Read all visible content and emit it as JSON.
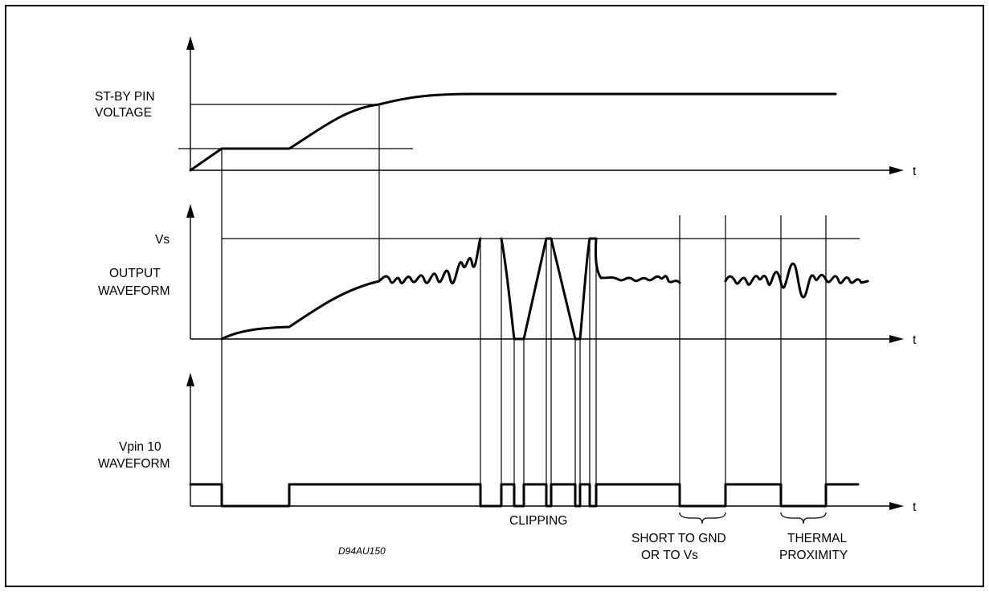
{
  "diagram": {
    "panels": [
      {
        "id": "standby",
        "label_lines": [
          "ST-BY PIN",
          "VOLTAGE"
        ],
        "axis_label": "t"
      },
      {
        "id": "output",
        "label_lines": [
          "OUTPUT",
          "WAVEFORM"
        ],
        "level_label": "Vs",
        "axis_label": "t"
      },
      {
        "id": "pin10",
        "label_lines": [
          "Vpin 10",
          "WAVEFORM"
        ],
        "axis_label": "t"
      }
    ],
    "annotations": {
      "clipping": "CLIPPING",
      "short_lines": [
        "SHORT TO GND",
        "OR TO Vs"
      ],
      "thermal_lines": [
        "THERMAL",
        "PROXIMITY"
      ]
    },
    "figure_code": "D94AU150"
  }
}
